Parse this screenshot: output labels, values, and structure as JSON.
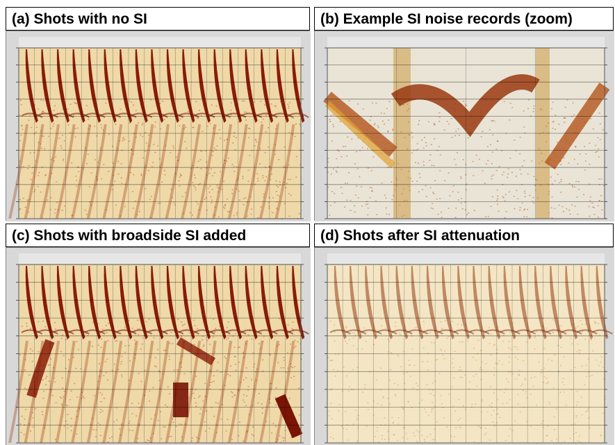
{
  "panels": [
    {
      "title": "(a) Shots with no SI"
    },
    {
      "title": "(b) Example SI noise records (zoom)"
    },
    {
      "title": "(c) Shots with broadside SI added"
    },
    {
      "title": "(d) Shots after SI attenuation"
    }
  ]
}
